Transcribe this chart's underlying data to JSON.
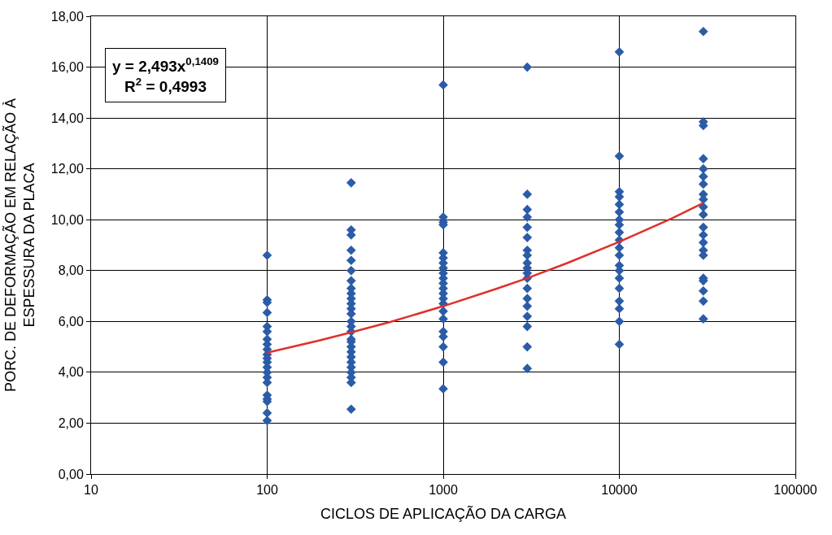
{
  "chart_data": {
    "type": "scatter",
    "xlabel": "CICLOS DE APLICAÇÃO DA CARGA",
    "ylabel": "PORC. DE DEFORMAÇÃO EM RELAÇÃO À ESPESSURA DA PLACA",
    "log": "x",
    "grid": true,
    "marker": "diamond",
    "xlim": [
      10,
      100000
    ],
    "xticks": [
      10,
      100,
      1000,
      10000,
      100000
    ],
    "ylim": [
      0,
      18
    ],
    "yticks": [
      {
        "value": 0,
        "label": "0,00"
      },
      {
        "value": 2,
        "label": "2,00"
      },
      {
        "value": 4,
        "label": "4,00"
      },
      {
        "value": 6,
        "label": "6,00"
      },
      {
        "value": 8,
        "label": "8,00"
      },
      {
        "value": 10,
        "label": "10,00"
      },
      {
        "value": 12,
        "label": "12,00"
      },
      {
        "value": 14,
        "label": "14,00"
      },
      {
        "value": 16,
        "label": "16,00"
      },
      {
        "value": 18,
        "label": "18,00"
      }
    ],
    "annotations": [
      "y = 2,493x$^{0,1409}$",
      "R$^{2}$ = 0,4993"
    ],
    "series": [
      {
        "color": "#2b5ca8",
        "x": [
          100,
          100,
          100,
          100,
          100,
          100,
          100,
          100,
          100,
          100,
          100,
          100,
          100,
          100,
          100,
          100,
          100,
          100,
          100,
          100,
          100,
          300,
          300,
          300,
          300,
          300,
          300,
          300,
          300,
          300,
          300,
          300,
          300,
          300,
          300,
          300,
          300,
          300,
          300,
          300,
          300,
          300,
          300,
          300,
          300,
          300,
          300,
          300,
          1000,
          1000,
          1000,
          1000,
          1000,
          1000,
          1000,
          1000,
          1000,
          1000,
          1000,
          1000,
          1000,
          1000,
          1000,
          1000,
          1000,
          1000,
          1000,
          1000,
          1000,
          1000,
          3000,
          3000,
          3000,
          3000,
          3000,
          3000,
          3000,
          3000,
          3000,
          3000,
          3000,
          3000,
          3000,
          3000,
          3000,
          3000,
          3000,
          3000,
          3000,
          10000,
          10000,
          10000,
          10000,
          10000,
          10000,
          10000,
          10000,
          10000,
          10000,
          10000,
          10000,
          10000,
          10000,
          10000,
          10000,
          10000,
          10000,
          10000,
          10000,
          30000,
          30000,
          30000,
          30000,
          30000,
          30000,
          30000,
          30000,
          30000,
          30000,
          30000,
          30000,
          30000,
          30000,
          30000,
          30000,
          30000,
          30000,
          30000,
          30000,
          30000
        ],
        "values": [
          8.6,
          6.85,
          6.75,
          6.35,
          5.8,
          5.6,
          5.3,
          5.1,
          4.9,
          4.7,
          4.55,
          4.4,
          4.2,
          4.0,
          3.8,
          3.6,
          3.1,
          2.95,
          2.85,
          2.4,
          2.1,
          11.45,
          9.6,
          9.4,
          8.8,
          8.4,
          8.0,
          7.6,
          7.3,
          7.1,
          6.9,
          6.7,
          6.5,
          6.3,
          6.0,
          5.8,
          5.6,
          5.3,
          5.2,
          5.0,
          4.8,
          4.6,
          4.4,
          4.2,
          4.0,
          3.8,
          3.6,
          2.55,
          15.3,
          10.1,
          9.9,
          9.8,
          8.7,
          8.5,
          8.3,
          8.1,
          7.9,
          7.7,
          7.5,
          7.3,
          7.1,
          6.9,
          6.7,
          6.4,
          6.1,
          5.6,
          5.4,
          5.0,
          4.4,
          3.35,
          16.0,
          11.0,
          10.4,
          10.1,
          9.7,
          9.3,
          8.8,
          8.6,
          8.3,
          8.1,
          7.9,
          7.7,
          7.3,
          6.9,
          6.6,
          6.2,
          5.8,
          5.0,
          4.15,
          16.6,
          12.5,
          11.1,
          10.9,
          10.6,
          10.3,
          10.0,
          9.8,
          9.5,
          9.2,
          8.9,
          8.6,
          8.2,
          8.0,
          7.7,
          7.3,
          6.8,
          6.5,
          6.0,
          5.1,
          17.4,
          13.85,
          13.7,
          12.4,
          12.0,
          11.7,
          11.4,
          11.0,
          10.8,
          10.5,
          10.2,
          9.7,
          9.4,
          9.1,
          8.8,
          8.6,
          7.7,
          7.6,
          7.2,
          6.8,
          6.1
        ]
      },
      {
        "type": "line",
        "color": "#e0302a",
        "marker": "none",
        "x": [
          100,
          200,
          300,
          500,
          1000,
          2000,
          3000,
          5000,
          10000,
          20000,
          30000
        ],
        "values": [
          4.77,
          5.26,
          5.57,
          5.98,
          6.6,
          7.28,
          7.7,
          8.28,
          9.13,
          10.06,
          10.66
        ]
      }
    ]
  }
}
